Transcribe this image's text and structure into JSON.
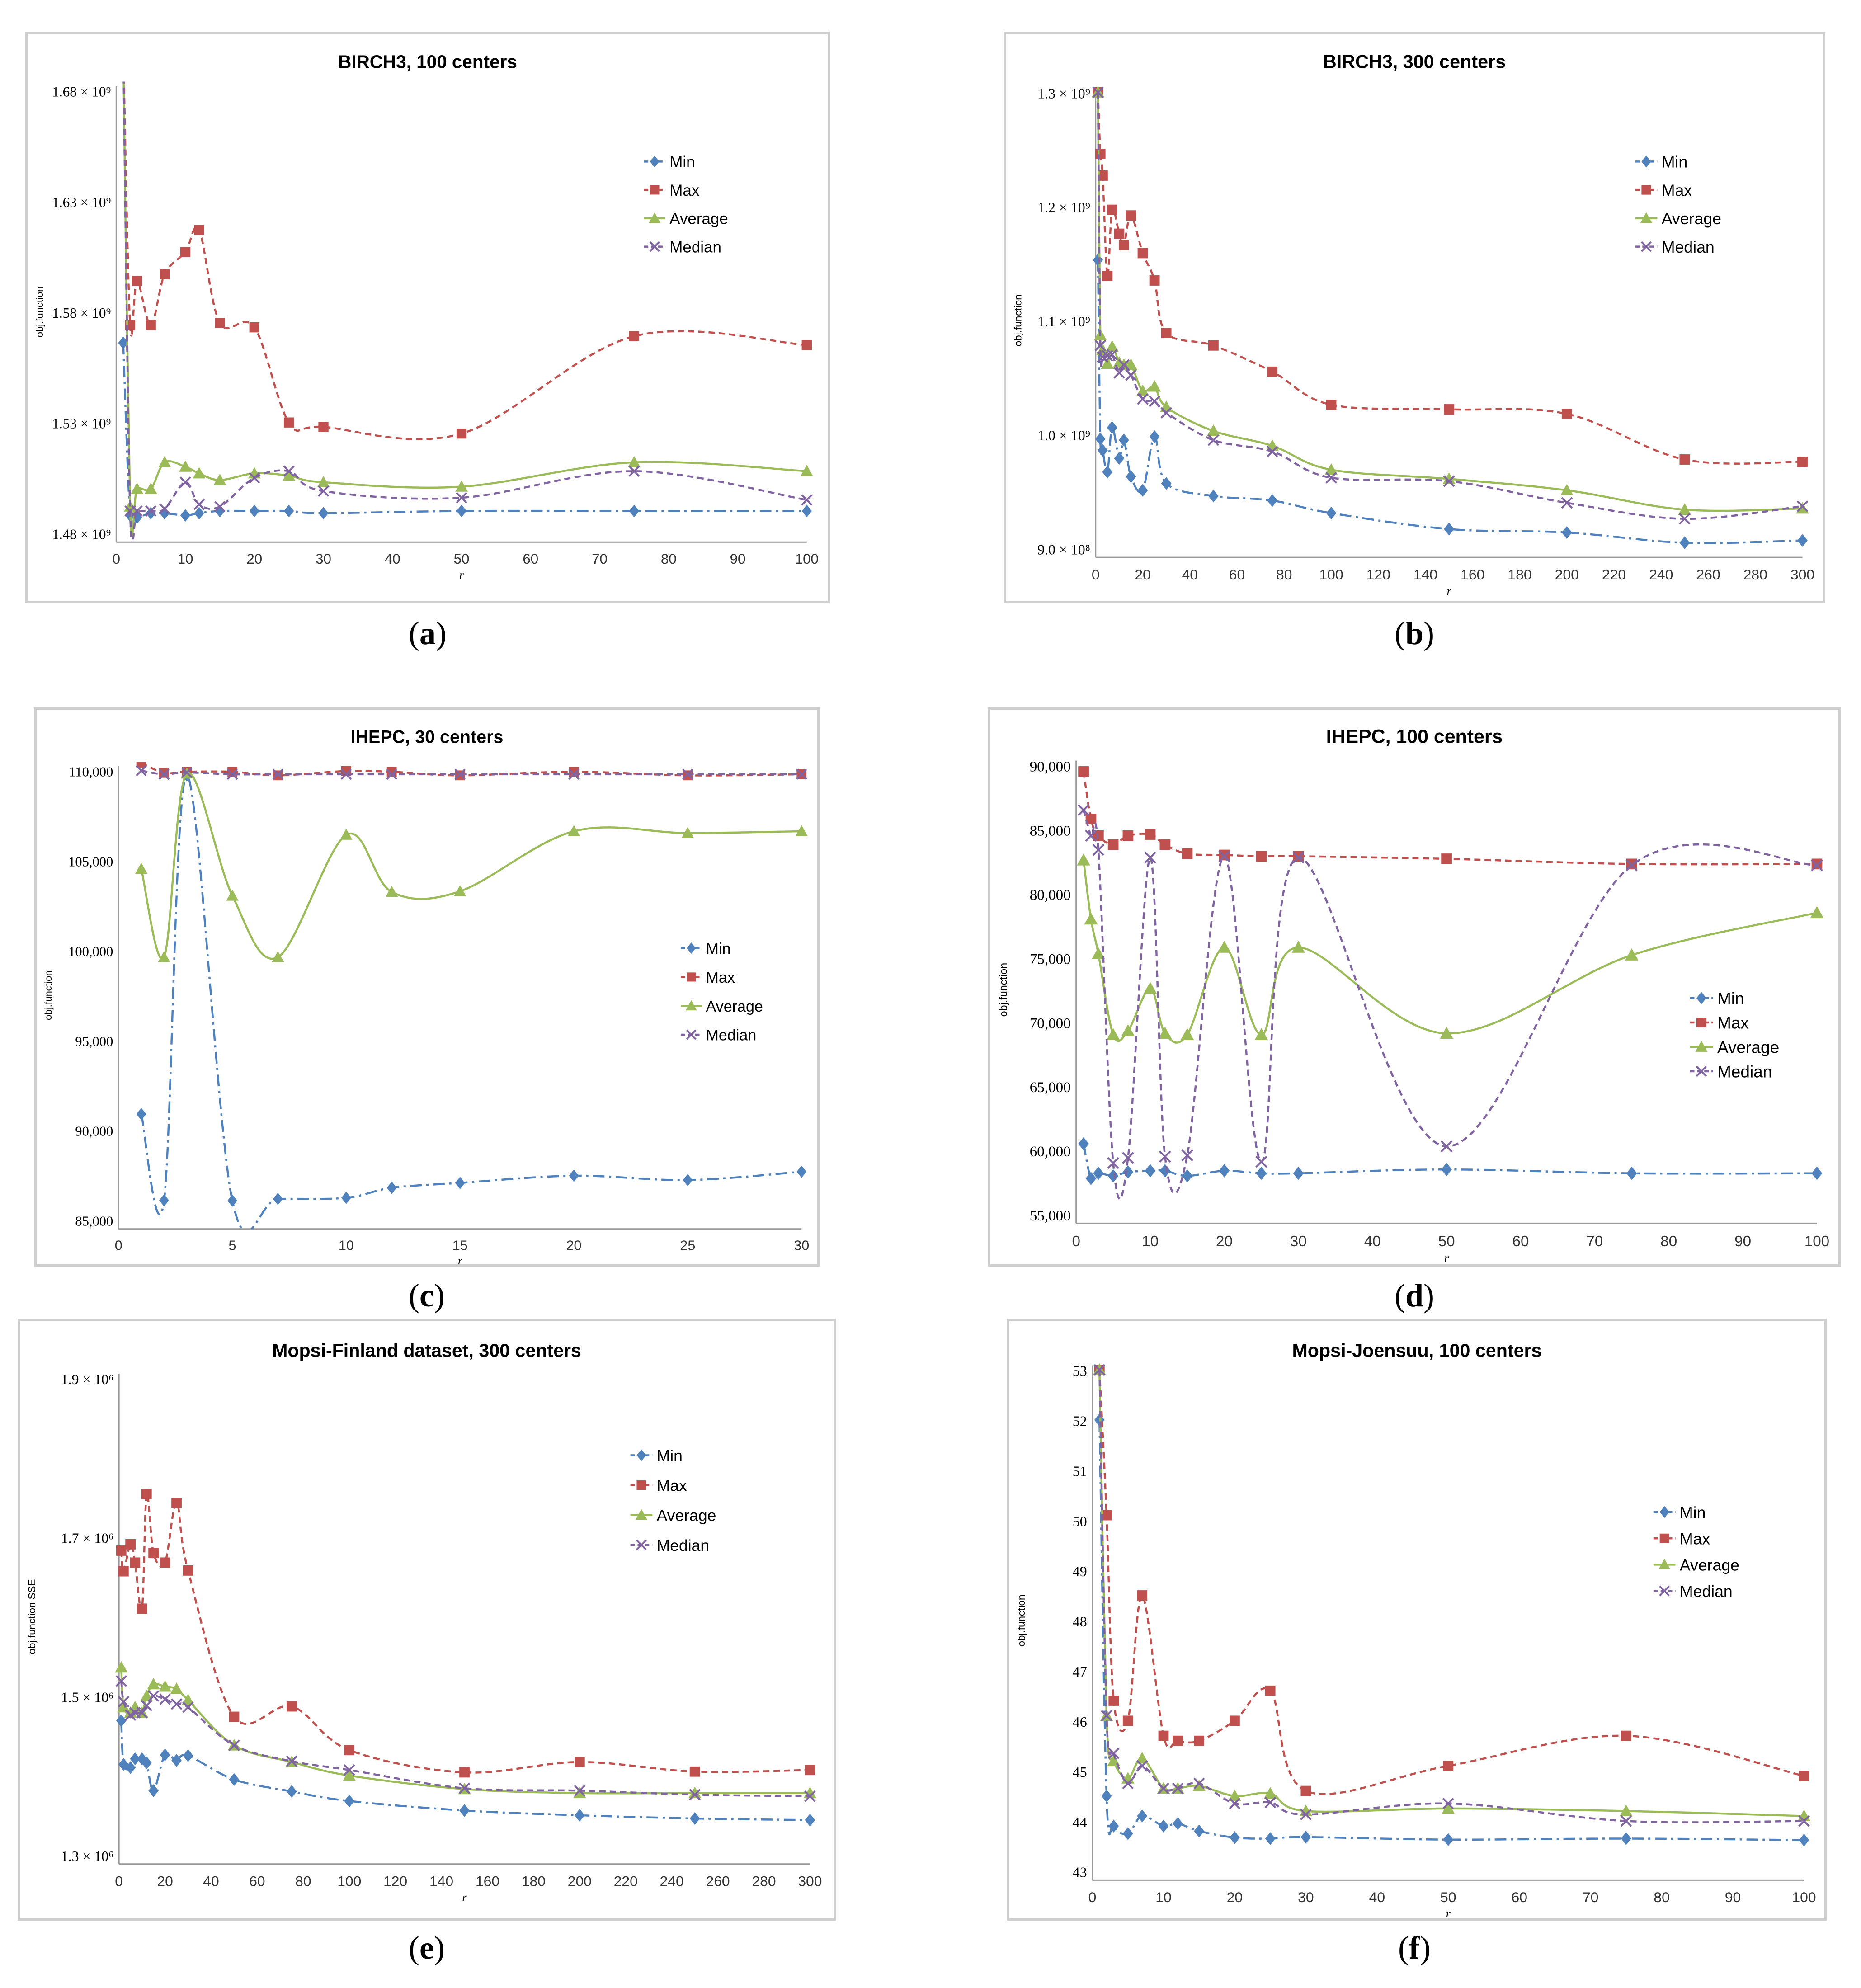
{
  "panel_labels": [
    "a",
    "b",
    "c",
    "d",
    "e",
    "f"
  ],
  "series_style": {
    "Min": {
      "color": "#4f81bd",
      "marker": "diamond",
      "dash": "dash-dot"
    },
    "Max": {
      "color": "#c0504d",
      "marker": "square",
      "dash": "dashed"
    },
    "Average": {
      "color": "#9bbb59",
      "marker": "triangle",
      "dash": "solid"
    },
    "Median": {
      "color": "#8064a2",
      "marker": "x",
      "dash": "dashed"
    }
  },
  "chart_data": [
    {
      "type": "line",
      "title": "BIRCH3, 100 centers",
      "xlabel": "r",
      "ylabel": "obj.function",
      "y_unit": "×10^9",
      "xlim": [
        0,
        100
      ],
      "ylim": [
        1.48,
        1.68
      ],
      "xticks": [
        0,
        10,
        20,
        30,
        40,
        50,
        60,
        70,
        80,
        90,
        100
      ],
      "yticks": [
        1.48,
        1.53,
        1.58,
        1.63,
        1.68
      ],
      "ytick_labels": [
        "1.48 × 10⁹",
        "1.53 × 10⁹",
        "1.58 × 10⁹",
        "1.63 × 10⁹",
        "1.68 × 10⁹"
      ],
      "legend": "right-upper",
      "x": [
        1,
        2,
        3,
        5,
        7,
        10,
        12,
        15,
        20,
        25,
        30,
        50,
        75,
        100
      ],
      "series": [
        {
          "name": "Min",
          "values": [
            1.566,
            1.488,
            1.487,
            1.489,
            1.489,
            1.488,
            1.489,
            1.49,
            1.49,
            1.49,
            1.489,
            1.49,
            1.49,
            1.49
          ]
        },
        {
          "name": "Max",
          "values": [
            1.7,
            1.574,
            1.594,
            1.574,
            1.597,
            1.607,
            1.617,
            1.575,
            1.573,
            1.53,
            1.528,
            1.525,
            1.569,
            1.565
          ]
        },
        {
          "name": "Average",
          "values": [
            1.7,
            1.492,
            1.5,
            1.5,
            1.512,
            1.51,
            1.507,
            1.504,
            1.507,
            1.506,
            1.503,
            1.501,
            1.512,
            1.508
          ]
        },
        {
          "name": "Median",
          "values": [
            1.7,
            1.49,
            1.49,
            1.49,
            1.491,
            1.503,
            1.493,
            1.492,
            1.505,
            1.508,
            1.499,
            1.496,
            1.508,
            1.495
          ]
        }
      ]
    },
    {
      "type": "line",
      "title": "BIRCH3, 300 centers",
      "xlabel": "r",
      "ylabel": "obj.function",
      "y_unit": "×10^9",
      "xlim": [
        0,
        300
      ],
      "ylim": [
        0.9,
        1.3
      ],
      "xticks": [
        0,
        20,
        40,
        60,
        80,
        100,
        120,
        140,
        160,
        180,
        200,
        220,
        240,
        260,
        280,
        300
      ],
      "yticks": [
        0.9,
        1.0,
        1.1,
        1.2,
        1.3
      ],
      "ytick_labels": [
        "9.0 × 10⁸",
        "1.0 × 10⁹",
        "1.1 × 10⁹",
        "1.2 × 10⁹",
        "1.3 × 10⁹"
      ],
      "legend": "right-upper",
      "x": [
        1,
        2,
        3,
        5,
        7,
        10,
        12,
        15,
        20,
        25,
        30,
        50,
        75,
        100,
        150,
        200,
        250,
        300
      ],
      "series": [
        {
          "name": "Min",
          "values": [
            1.153,
            0.996,
            0.986,
            0.967,
            1.006,
            0.979,
            0.995,
            0.963,
            0.951,
            0.998,
            0.957,
            0.946,
            0.942,
            0.931,
            0.917,
            0.914,
            0.905,
            0.907
          ]
        },
        {
          "name": "Max",
          "values": [
            1.3,
            1.246,
            1.227,
            1.139,
            1.197,
            1.176,
            1.166,
            1.192,
            1.159,
            1.135,
            1.089,
            1.078,
            1.055,
            1.026,
            1.022,
            1.018,
            0.978,
            0.976
          ]
        },
        {
          "name": "Average",
          "values": [
            1.3,
            1.087,
            1.074,
            1.062,
            1.077,
            1.063,
            1.061,
            1.061,
            1.038,
            1.042,
            1.024,
            1.003,
            0.99,
            0.969,
            0.961,
            0.951,
            0.934,
            0.935
          ]
        },
        {
          "name": "Median",
          "values": [
            1.3,
            1.078,
            1.068,
            1.069,
            1.07,
            1.054,
            1.061,
            1.052,
            1.031,
            1.029,
            1.019,
            0.995,
            0.985,
            0.962,
            0.959,
            0.94,
            0.926,
            0.937
          ]
        }
      ]
    },
    {
      "type": "line",
      "title": "IHEPC, 30 centers",
      "xlabel": "r",
      "ylabel": "obj.function",
      "xlim": [
        0,
        30
      ],
      "ylim": [
        85000,
        110000
      ],
      "xticks": [
        0,
        5,
        10,
        15,
        20,
        25,
        30
      ],
      "yticks": [
        85000,
        90000,
        95000,
        100000,
        105000,
        110000
      ],
      "ytick_labels": [
        "85,000",
        "90,000",
        "95,000",
        "100,000",
        "105,000",
        "110,000"
      ],
      "legend": "right-middle",
      "x": [
        1,
        2,
        3,
        5,
        7,
        10,
        12,
        15,
        20,
        25,
        30
      ],
      "series": [
        {
          "name": "Min",
          "values": [
            90890,
            86090,
            109740,
            86070,
            86170,
            86230,
            86790,
            87060,
            87460,
            87220,
            87680
          ]
        },
        {
          "name": "Max",
          "values": [
            110440,
            109880,
            109940,
            109940,
            109740,
            109980,
            109940,
            109740,
            109940,
            109740,
            109800
          ]
        },
        {
          "name": "Average",
          "values": [
            104540,
            99620,
            109840,
            103040,
            99620,
            106430,
            103250,
            103290,
            106630,
            106530,
            106630
          ]
        },
        {
          "name": "Median",
          "values": [
            110000,
            109800,
            109900,
            109800,
            109800,
            109800,
            109800,
            109800,
            109800,
            109800,
            109800
          ]
        }
      ]
    },
    {
      "type": "line",
      "title": "IHEPC, 100 centers",
      "xlabel": "r",
      "ylabel": "obj.function",
      "xlim": [
        0,
        100
      ],
      "ylim": [
        55000,
        90000
      ],
      "xticks": [
        0,
        10,
        20,
        30,
        40,
        50,
        60,
        70,
        80,
        90,
        100
      ],
      "yticks": [
        55000,
        60000,
        65000,
        70000,
        75000,
        80000,
        85000,
        90000
      ],
      "ytick_labels": [
        "55,000",
        "60,000",
        "65,000",
        "70,000",
        "75,000",
        "80,000",
        "85,000",
        "90,000"
      ],
      "legend": "right-middle",
      "x": [
        1,
        2,
        3,
        5,
        7,
        10,
        12,
        15,
        20,
        25,
        30,
        50,
        75,
        100
      ],
      "series": [
        {
          "name": "Min",
          "values": [
            60500,
            57800,
            58200,
            58000,
            58300,
            58400,
            58400,
            58000,
            58400,
            58200,
            58200,
            58500,
            58200,
            58200
          ]
        },
        {
          "name": "Max",
          "values": [
            89500,
            85800,
            84500,
            83800,
            84500,
            84600,
            83800,
            83100,
            83000,
            82900,
            82900,
            82700,
            82300,
            82300
          ]
        },
        {
          "name": "Average",
          "values": [
            82600,
            78000,
            75300,
            69000,
            69300,
            72600,
            69100,
            69000,
            75800,
            69000,
            75800,
            69100,
            75200,
            78500
          ]
        },
        {
          "name": "Median",
          "values": [
            86500,
            84500,
            83400,
            59000,
            59400,
            82800,
            59500,
            59600,
            82900,
            59100,
            82800,
            60300,
            82200,
            82200
          ]
        }
      ]
    },
    {
      "type": "line",
      "title": "Mopsi-Finland dataset, 300 centers",
      "xlabel": "r",
      "ylabel": "obj.function SSE",
      "y_unit": "×10^6",
      "xlim": [
        0,
        300
      ],
      "ylim": [
        1.3,
        1.9
      ],
      "xticks": [
        0,
        20,
        40,
        60,
        80,
        100,
        120,
        140,
        160,
        180,
        200,
        220,
        240,
        260,
        280,
        300
      ],
      "yticks": [
        1.3,
        1.5,
        1.7,
        1.9
      ],
      "ytick_labels": [
        "1.3 × 10⁶",
        "1.5 × 10⁶",
        "1.7 × 10⁶",
        "1.9 × 10⁶"
      ],
      "legend": "right-upper",
      "x": [
        1,
        2,
        5,
        7,
        10,
        12,
        15,
        20,
        25,
        30,
        50,
        75,
        100,
        150,
        200,
        250,
        300
      ],
      "series": [
        {
          "name": "Min",
          "values": [
            1.469,
            1.414,
            1.41,
            1.421,
            1.421,
            1.416,
            1.381,
            1.426,
            1.419,
            1.425,
            1.395,
            1.38,
            1.368,
            1.356,
            1.35,
            1.346,
            1.344
          ]
        },
        {
          "name": "Max",
          "values": [
            1.683,
            1.657,
            1.691,
            1.668,
            1.61,
            1.754,
            1.68,
            1.668,
            1.743,
            1.658,
            1.474,
            1.487,
            1.432,
            1.404,
            1.417,
            1.405,
            1.407
          ]
        },
        {
          "name": "Average",
          "values": [
            1.536,
            1.486,
            1.479,
            1.486,
            1.479,
            1.5,
            1.515,
            1.512,
            1.509,
            1.495,
            1.438,
            1.417,
            1.4,
            1.383,
            1.378,
            1.378,
            1.378
          ]
        },
        {
          "name": "Median",
          "values": [
            1.519,
            1.493,
            1.476,
            1.479,
            1.479,
            1.488,
            1.5,
            1.496,
            1.49,
            1.486,
            1.438,
            1.418,
            1.407,
            1.384,
            1.381,
            1.376,
            1.374
          ]
        }
      ]
    },
    {
      "type": "line",
      "title": "Mopsi-Joensuu, 100 centers",
      "xlabel": "r",
      "ylabel": "obj.function",
      "xlim": [
        0,
        100
      ],
      "ylim": [
        43,
        53
      ],
      "xticks": [
        0,
        10,
        20,
        30,
        40,
        50,
        60,
        70,
        80,
        90,
        100
      ],
      "yticks": [
        43,
        44,
        45,
        46,
        47,
        48,
        49,
        50,
        51,
        52,
        53
      ],
      "ytick_labels": [
        "43",
        "44",
        "45",
        "46",
        "47",
        "48",
        "49",
        "50",
        "51",
        "52",
        "53"
      ],
      "legend": "right-middle",
      "x": [
        1,
        2,
        3,
        5,
        7,
        10,
        12,
        15,
        20,
        25,
        30,
        50,
        75,
        100
      ],
      "series": [
        {
          "name": "Min",
          "values": [
            52.0,
            44.5,
            43.9,
            43.75,
            44.1,
            43.9,
            43.95,
            43.8,
            43.67,
            43.65,
            43.68,
            43.63,
            43.65,
            43.62
          ]
        },
        {
          "name": "Max",
          "values": [
            53.0,
            50.1,
            46.4,
            46.0,
            48.5,
            45.7,
            45.6,
            45.6,
            46.0,
            46.6,
            44.6,
            45.1,
            45.7,
            44.9
          ]
        },
        {
          "name": "Average",
          "values": [
            53.0,
            46.1,
            45.2,
            44.85,
            45.25,
            44.65,
            44.65,
            44.7,
            44.5,
            44.55,
            44.2,
            44.25,
            44.2,
            44.1
          ]
        },
        {
          "name": "Median",
          "values": [
            53.0,
            46.1,
            45.35,
            44.75,
            45.1,
            44.65,
            44.65,
            44.75,
            44.35,
            44.37,
            44.13,
            44.35,
            44.0,
            44.0
          ]
        }
      ]
    }
  ]
}
